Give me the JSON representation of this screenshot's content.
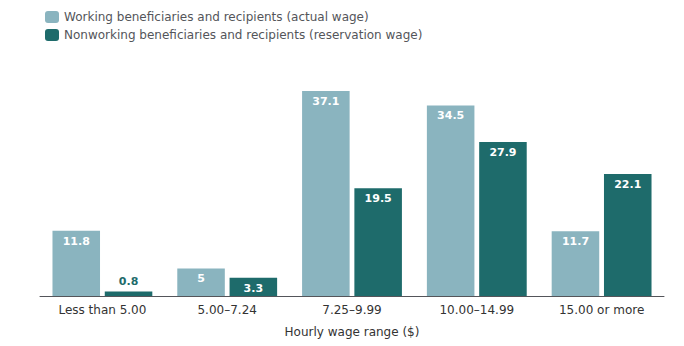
{
  "chart_data": {
    "type": "bar",
    "categories": [
      "Less than 5.00",
      "5.00–7.24",
      "7.25–9.99",
      "10.00–14.99",
      "15.00 or more"
    ],
    "series": [
      {
        "name": "Working beneficiaries and recipients (actual wage)",
        "color": "#8ab4bf",
        "values": [
          11.8,
          5.0,
          37.1,
          34.5,
          11.7
        ]
      },
      {
        "name": "Nonworking beneficiaries and recipients (reservation wage)",
        "color": "#1e6b6b",
        "values": [
          0.8,
          3.3,
          19.5,
          27.9,
          22.1
        ]
      }
    ],
    "xlabel": "Hourly wage range ($)",
    "ylim": [
      0,
      42
    ],
    "grid": false,
    "legend": "upper left",
    "data_labels": true,
    "tick_labels": "x"
  }
}
